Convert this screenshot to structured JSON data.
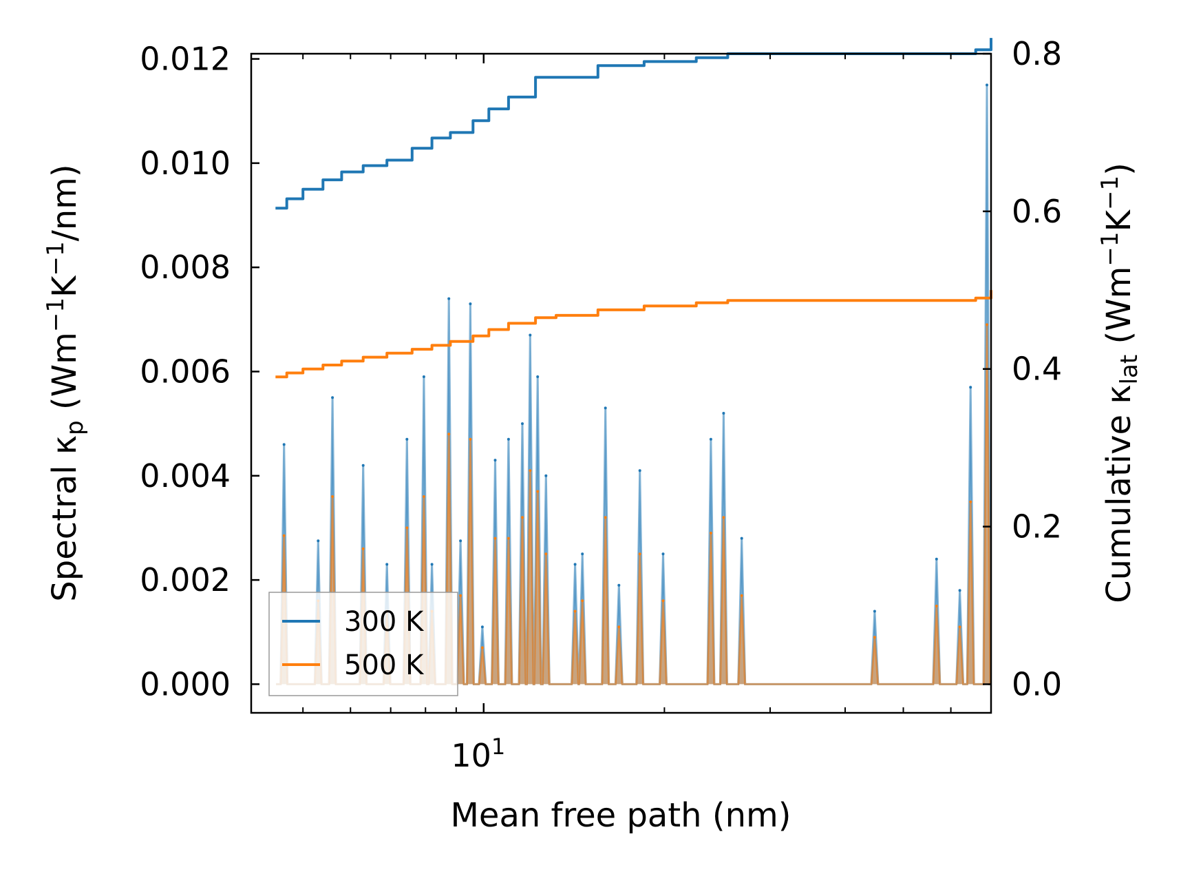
{
  "chart_data": {
    "type": "line",
    "x_scale": "log",
    "xlim": [
      4.1,
      70
    ],
    "xticks": [
      {
        "value": 10,
        "base": "10",
        "exp": "1"
      }
    ],
    "xlabel": "Mean free path (nm)",
    "ylabel_left": {
      "pre": "Spectral κ",
      "sub": "p",
      "post": " (Wm",
      "sup1": "−1",
      "mid": "K",
      "sup2": "−1",
      "end": "/nm)"
    },
    "ylabel_right": {
      "pre": "Cumulative κ",
      "sub": "lat",
      "post": " (Wm",
      "sup1": "−1",
      "mid": "K",
      "sup2": "−1",
      "end": ")"
    },
    "ylim_left": [
      -0.00055,
      0.0121
    ],
    "ylim_right": [
      -0.0363,
      0.8
    ],
    "yticks_left": [
      "0.000",
      "0.002",
      "0.004",
      "0.006",
      "0.008",
      "0.010",
      "0.012"
    ],
    "yticks_right": [
      "0.0",
      "0.2",
      "0.4",
      "0.6",
      "0.8"
    ],
    "legend": {
      "position": "lower-left",
      "entries": [
        "300 K",
        "500 K"
      ]
    },
    "colors": {
      "300 K": "#1f77b4",
      "500 K": "#ff7f0e"
    },
    "spectral_peaks": [
      {
        "x": 4.65,
        "s300": 0.0046,
        "s500": 0.00285
      },
      {
        "x": 5.3,
        "s300": 0.00275,
        "s500": 0.0016
      },
      {
        "x": 5.6,
        "s300": 0.0055,
        "s500": 0.0036
      },
      {
        "x": 6.3,
        "s300": 0.0042,
        "s500": 0.0026
      },
      {
        "x": 6.9,
        "s300": 0.0023,
        "s500": 0.0014
      },
      {
        "x": 7.45,
        "s300": 0.0047,
        "s500": 0.003
      },
      {
        "x": 7.95,
        "s300": 0.0059,
        "s500": 0.0036
      },
      {
        "x": 8.2,
        "s300": 0.0023,
        "s500": 0.0014
      },
      {
        "x": 8.75,
        "s300": 0.0074,
        "s500": 0.0048
      },
      {
        "x": 9.15,
        "s300": 0.00275,
        "s500": 0.0017
      },
      {
        "x": 9.5,
        "s300": 0.0073,
        "s500": 0.0047
      },
      {
        "x": 9.95,
        "s300": 0.0011,
        "s500": 0.0007
      },
      {
        "x": 10.45,
        "s300": 0.0043,
        "s500": 0.0028
      },
      {
        "x": 11.0,
        "s300": 0.0047,
        "s500": 0.0028
      },
      {
        "x": 11.6,
        "s300": 0.005,
        "s500": 0.0032
      },
      {
        "x": 11.95,
        "s300": 0.0067,
        "s500": 0.0041
      },
      {
        "x": 12.3,
        "s300": 0.0059,
        "s500": 0.0037
      },
      {
        "x": 12.7,
        "s300": 0.004,
        "s500": 0.0025
      },
      {
        "x": 14.2,
        "s300": 0.0023,
        "s500": 0.0014
      },
      {
        "x": 14.6,
        "s300": 0.0025,
        "s500": 0.0016
      },
      {
        "x": 15.95,
        "s300": 0.0053,
        "s500": 0.0032
      },
      {
        "x": 16.8,
        "s300": 0.0019,
        "s500": 0.0011
      },
      {
        "x": 18.2,
        "s300": 0.0041,
        "s500": 0.0025
      },
      {
        "x": 19.9,
        "s300": 0.0025,
        "s500": 0.0016
      },
      {
        "x": 23.9,
        "s300": 0.0047,
        "s500": 0.0029
      },
      {
        "x": 25.1,
        "s300": 0.0052,
        "s500": 0.0032
      },
      {
        "x": 26.9,
        "s300": 0.0028,
        "s500": 0.0017
      },
      {
        "x": 44.8,
        "s300": 0.0014,
        "s500": 0.0009
      },
      {
        "x": 56.8,
        "s300": 0.0024,
        "s500": 0.0015
      },
      {
        "x": 62.1,
        "s300": 0.0018,
        "s500": 0.0011
      },
      {
        "x": 64.7,
        "s300": 0.0057,
        "s500": 0.0035
      },
      {
        "x": 68.9,
        "s300": 0.0115,
        "s500": 0.0069
      }
    ],
    "cumulative_300K": {
      "x": [
        4.5,
        4.7,
        5.0,
        5.4,
        5.8,
        6.3,
        6.9,
        7.6,
        8.2,
        8.8,
        9.6,
        10.2,
        11.0,
        12.2,
        13.2,
        15.5,
        18.5,
        22.6,
        25.5,
        33.5,
        45.0,
        60.0,
        66.0,
        70.0
      ],
      "y": [
        0.604,
        0.616,
        0.628,
        0.64,
        0.65,
        0.658,
        0.665,
        0.68,
        0.693,
        0.7,
        0.715,
        0.73,
        0.745,
        0.77,
        0.77,
        0.785,
        0.79,
        0.795,
        0.8,
        0.8,
        0.8,
        0.8,
        0.805,
        0.82
      ]
    },
    "cumulative_500K": {
      "x": [
        4.5,
        4.7,
        5.0,
        5.4,
        5.8,
        6.3,
        6.9,
        7.6,
        8.2,
        8.8,
        9.6,
        10.2,
        11.0,
        12.2,
        13.2,
        15.5,
        18.5,
        22.6,
        25.5,
        33.5,
        45.0,
        60.0,
        66.0,
        70.0
      ],
      "y": [
        0.39,
        0.395,
        0.4,
        0.405,
        0.41,
        0.415,
        0.42,
        0.425,
        0.43,
        0.435,
        0.442,
        0.45,
        0.458,
        0.465,
        0.468,
        0.475,
        0.48,
        0.484,
        0.487,
        0.487,
        0.487,
        0.487,
        0.49,
        0.5
      ]
    }
  }
}
